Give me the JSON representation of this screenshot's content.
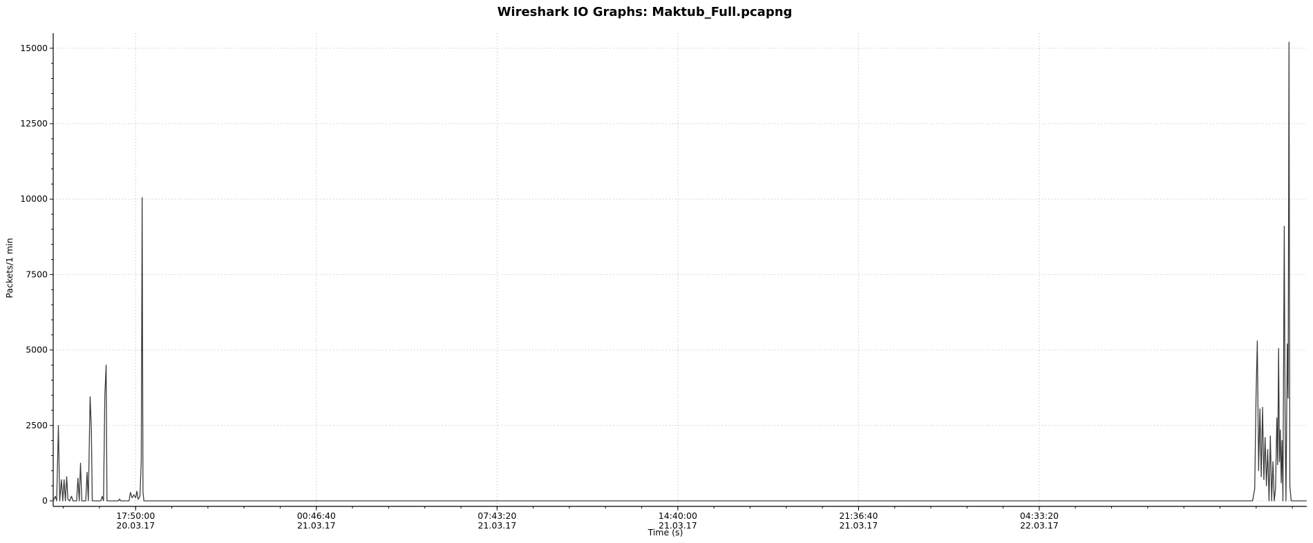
{
  "chart_data": {
    "type": "line",
    "title": "Wireshark IO Graphs: Maktub_Full.pcapng",
    "xlabel": "Time (s)",
    "ylabel": "Packets/1 min",
    "xlim": [
      "2017-03-20 14:40",
      "2017-03-22 14:50"
    ],
    "ylim": [
      0,
      15500
    ],
    "yticks": [
      0,
      2500,
      5000,
      7500,
      10000,
      12500,
      15000
    ],
    "xticks": [
      {
        "time": "2017-03-20 17:50:00",
        "line1": "17:50:00",
        "line2": "20.03.17"
      },
      {
        "time": "2017-03-21 00:46:40",
        "line1": "00:46:40",
        "line2": "21.03.17"
      },
      {
        "time": "2017-03-21 07:43:20",
        "line1": "07:43:20",
        "line2": "21.03.17"
      },
      {
        "time": "2017-03-21 14:40:00",
        "line1": "14:40:00",
        "line2": "21.03.17"
      },
      {
        "time": "2017-03-21 21:36:40",
        "line1": "21:36:40",
        "line2": "21.03.17"
      },
      {
        "time": "2017-03-22 04:33:20",
        "line1": "04:33:20",
        "line2": "22.03.17"
      }
    ],
    "grid": true,
    "series": [
      {
        "color": "#3a3a3a",
        "points": [
          [
            "2017-03-20 14:40",
            0
          ],
          [
            "2017-03-20 14:45",
            150
          ],
          [
            "2017-03-20 14:48",
            0
          ],
          [
            "2017-03-20 14:52",
            2500
          ],
          [
            "2017-03-20 14:55",
            0
          ],
          [
            "2017-03-20 14:59",
            700
          ],
          [
            "2017-03-20 15:02",
            0
          ],
          [
            "2017-03-20 15:05",
            700
          ],
          [
            "2017-03-20 15:08",
            0
          ],
          [
            "2017-03-20 15:11",
            800
          ],
          [
            "2017-03-20 15:14",
            50
          ],
          [
            "2017-03-20 15:18",
            0
          ],
          [
            "2017-03-20 15:22",
            150
          ],
          [
            "2017-03-20 15:26",
            0
          ],
          [
            "2017-03-20 15:34",
            0
          ],
          [
            "2017-03-20 15:37",
            750
          ],
          [
            "2017-03-20 15:40",
            0
          ],
          [
            "2017-03-20 15:43",
            1250
          ],
          [
            "2017-03-20 15:46",
            0
          ],
          [
            "2017-03-20 15:55",
            0
          ],
          [
            "2017-03-20 15:58",
            950
          ],
          [
            "2017-03-20 16:01",
            0
          ],
          [
            "2017-03-20 16:05",
            3450
          ],
          [
            "2017-03-20 16:08",
            2400
          ],
          [
            "2017-03-20 16:10",
            0
          ],
          [
            "2017-03-20 16:30",
            0
          ],
          [
            "2017-03-20 16:33",
            150
          ],
          [
            "2017-03-20 16:36",
            0
          ],
          [
            "2017-03-20 16:39",
            3500
          ],
          [
            "2017-03-20 16:42",
            4500
          ],
          [
            "2017-03-20 16:44",
            0
          ],
          [
            "2017-03-20 17:10",
            0
          ],
          [
            "2017-03-20 17:13",
            60
          ],
          [
            "2017-03-20 17:16",
            0
          ],
          [
            "2017-03-20 17:35",
            0
          ],
          [
            "2017-03-20 17:38",
            280
          ],
          [
            "2017-03-20 17:42",
            100
          ],
          [
            "2017-03-20 17:46",
            200
          ],
          [
            "2017-03-20 17:50",
            100
          ],
          [
            "2017-03-20 17:53",
            320
          ],
          [
            "2017-03-20 17:56",
            50
          ],
          [
            "2017-03-20 18:00",
            150
          ],
          [
            "2017-03-20 18:03",
            1300
          ],
          [
            "2017-03-20 18:05",
            10050
          ],
          [
            "2017-03-20 18:07",
            300
          ],
          [
            "2017-03-20 18:09",
            0
          ],
          [
            "2017-03-22 12:45",
            0
          ],
          [
            "2017-03-22 12:50",
            400
          ],
          [
            "2017-03-22 12:53",
            3500
          ],
          [
            "2017-03-22 12:56",
            5300
          ],
          [
            "2017-03-22 12:59",
            1000
          ],
          [
            "2017-03-22 13:02",
            3050
          ],
          [
            "2017-03-22 13:05",
            800
          ],
          [
            "2017-03-22 13:08",
            3100
          ],
          [
            "2017-03-22 13:11",
            700
          ],
          [
            "2017-03-22 13:14",
            2100
          ],
          [
            "2017-03-22 13:17",
            500
          ],
          [
            "2017-03-22 13:20",
            1700
          ],
          [
            "2017-03-22 13:23",
            0
          ],
          [
            "2017-03-22 13:26",
            2150
          ],
          [
            "2017-03-22 13:29",
            0
          ],
          [
            "2017-03-22 13:32",
            1300
          ],
          [
            "2017-03-22 13:35",
            0
          ],
          [
            "2017-03-22 13:38",
            400
          ],
          [
            "2017-03-22 13:41",
            2750
          ],
          [
            "2017-03-22 13:43",
            1200
          ],
          [
            "2017-03-22 13:45",
            5050
          ],
          [
            "2017-03-22 13:47",
            1300
          ],
          [
            "2017-03-22 13:49",
            2350
          ],
          [
            "2017-03-22 13:51",
            600
          ],
          [
            "2017-03-22 13:53",
            2000
          ],
          [
            "2017-03-22 13:55",
            0
          ],
          [
            "2017-03-22 13:58",
            9100
          ],
          [
            "2017-03-22 14:00",
            2900
          ],
          [
            "2017-03-22 14:02",
            0
          ],
          [
            "2017-03-22 14:05",
            5200
          ],
          [
            "2017-03-22 14:07",
            3400
          ],
          [
            "2017-03-22 14:09",
            15200
          ],
          [
            "2017-03-22 14:11",
            500
          ],
          [
            "2017-03-22 14:14",
            0
          ]
        ]
      }
    ]
  }
}
